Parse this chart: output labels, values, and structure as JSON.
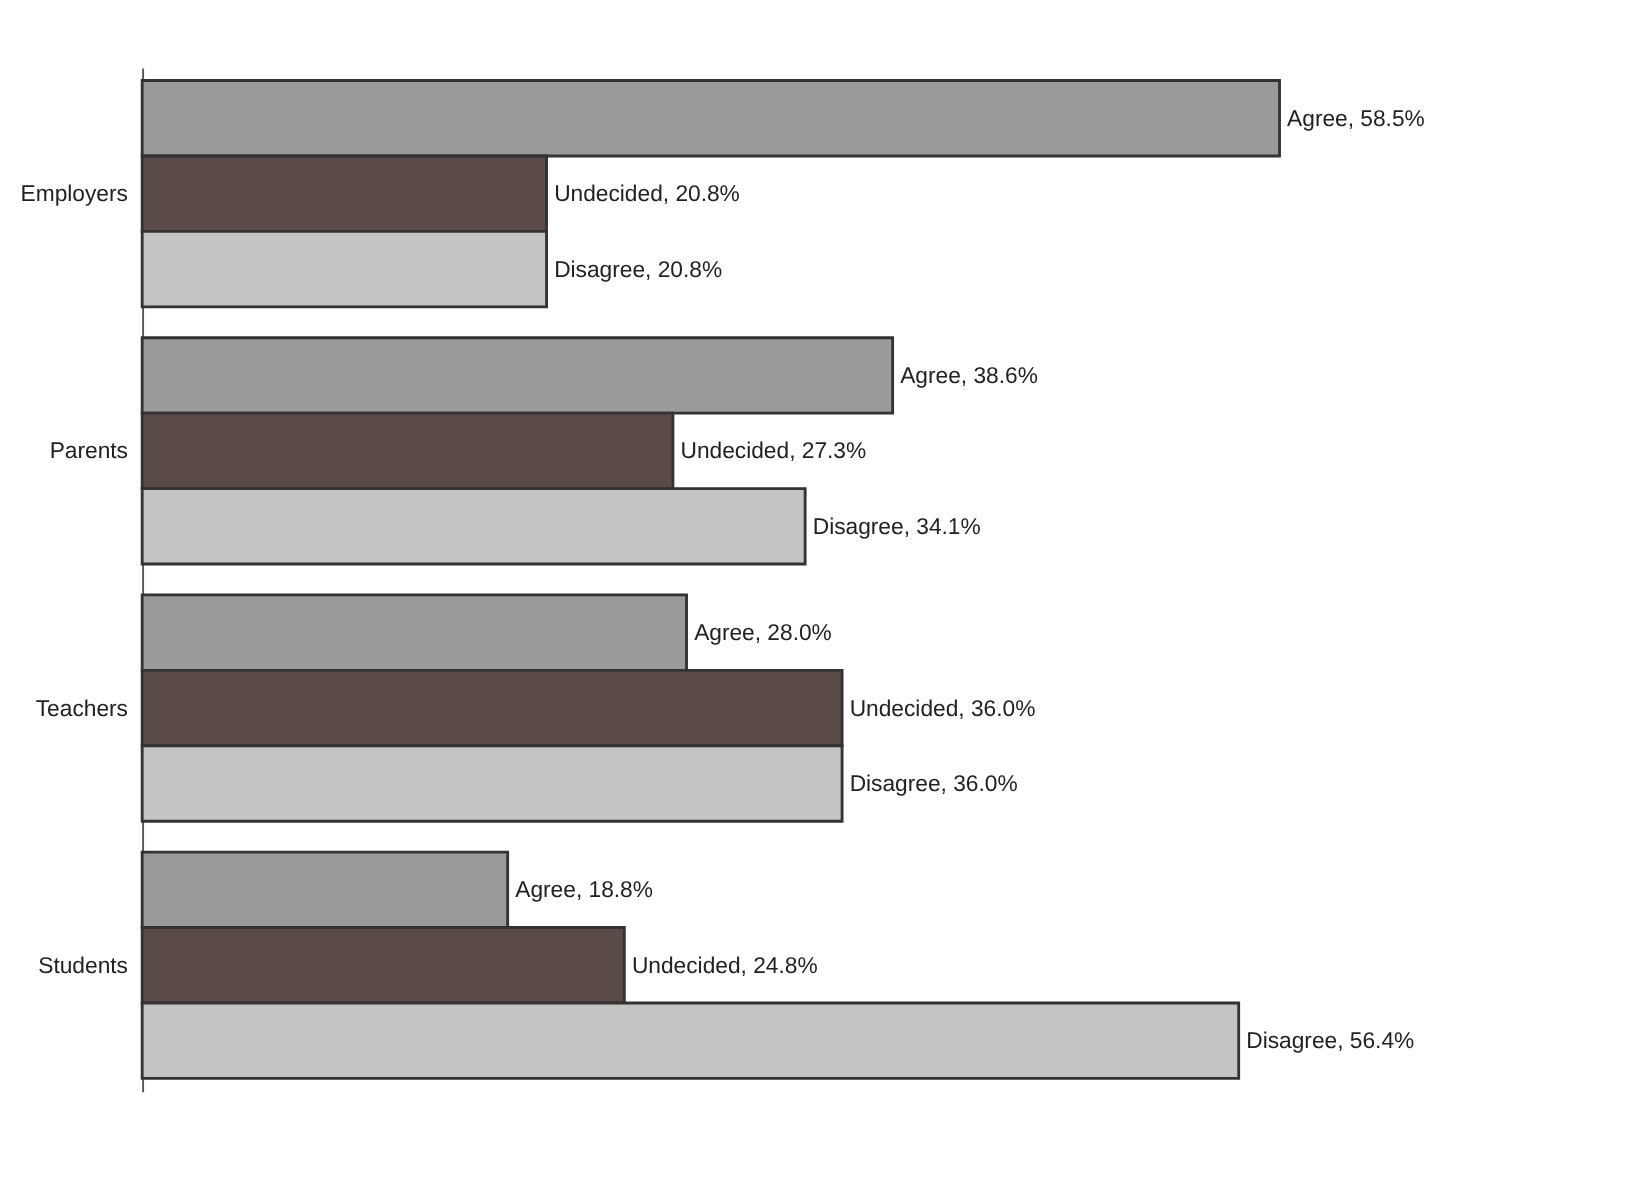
{
  "chart_data": {
    "type": "bar",
    "orientation": "horizontal",
    "categories": [
      "Employers",
      "Parents",
      "Teachers",
      "Students"
    ],
    "series": [
      {
        "color": "#9a9a9a",
        "values": [
          58.5,
          38.6,
          28.0,
          18.8
        ],
        "value_labels": [
          "Agree, 58.5%",
          "Agree, 38.6%",
          "Agree, 28.0%",
          "Agree, 18.8%"
        ]
      },
      {
        "color": "#5a4a48",
        "values": [
          20.8,
          27.3,
          36.0,
          24.8
        ],
        "value_labels": [
          "Undecided, 20.8%",
          "Undecided, 27.3%",
          "Undecided, 36.0%",
          "Undecided, 24.8%"
        ]
      },
      {
        "color": "#c4c4c4",
        "values": [
          20.8,
          34.1,
          36.0,
          56.4
        ],
        "value_labels": [
          "Disagree, 20.8%",
          "Disagree, 34.1%",
          "Disagree, 36.0%",
          "Disagree, 56.4%"
        ]
      }
    ],
    "tick_labels": "y",
    "legend": false
  }
}
